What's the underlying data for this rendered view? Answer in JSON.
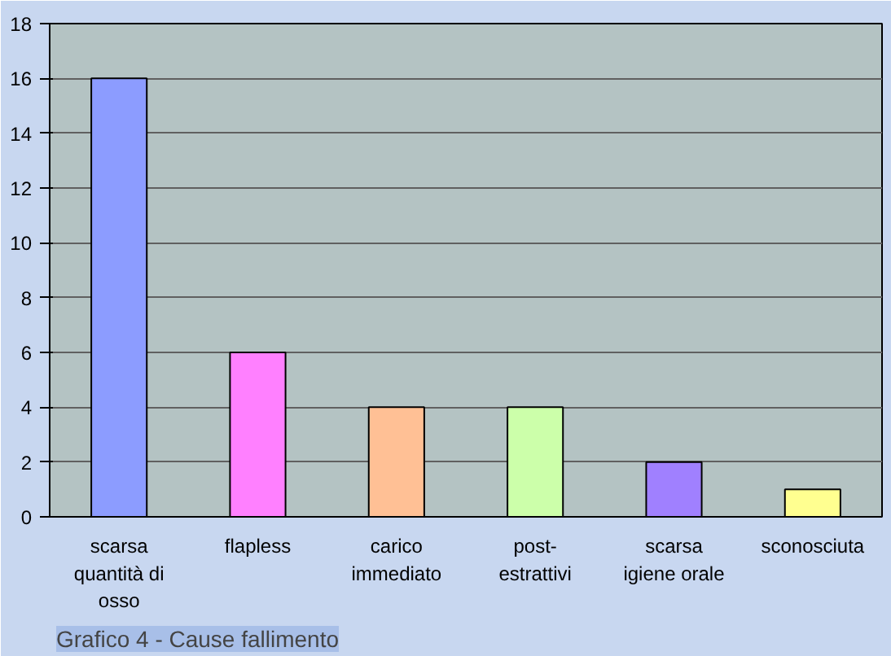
{
  "chart_data": {
    "type": "bar",
    "categories": [
      "scarsa quantità di osso",
      "flapless",
      "carico immediato",
      "post-estrattivi",
      "scarsa igiene orale",
      "sconosciuta"
    ],
    "values": [
      16,
      6,
      4,
      4,
      2,
      1
    ],
    "colors": [
      "#8c9cff",
      "#ff80ff",
      "#ffc095",
      "#ccffaa",
      "#a080ff",
      "#ffff90"
    ],
    "ylim": [
      0,
      18
    ],
    "yticks": [
      0,
      2,
      4,
      6,
      8,
      10,
      12,
      14,
      16,
      18
    ],
    "grid": "y",
    "annotations": [
      "Grafico 4 - Cause fallimento"
    ]
  }
}
